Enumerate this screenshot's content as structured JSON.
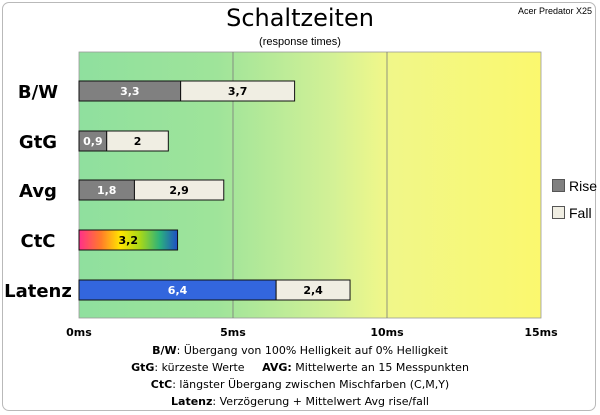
{
  "brand": "Acer Predator X25",
  "chart_data": {
    "type": "bar",
    "orientation": "horizontal",
    "stacked": true,
    "title": "Schaltzeiten",
    "subtitle": "(response times)",
    "categories": [
      "B/W",
      "GtG",
      "Avg",
      "CtC",
      "Latenz"
    ],
    "series": [
      {
        "name": "Rise",
        "values": [
          3.3,
          0.9,
          1.8,
          null,
          6.4
        ],
        "labels": [
          "3,3",
          "0,9",
          "1,8",
          "",
          "6,4"
        ]
      },
      {
        "name": "Fall",
        "values": [
          3.7,
          2.0,
          2.9,
          null,
          2.4
        ],
        "labels": [
          "3,7",
          "2",
          "2,9",
          "",
          "2,4"
        ]
      }
    ],
    "ctc": {
      "value": 3.2,
      "label": "3,2"
    },
    "xlim": [
      0,
      15
    ],
    "xticks": [
      {
        "value": 0,
        "label": "0ms"
      },
      {
        "value": 5,
        "label": "5ms"
      },
      {
        "value": 10,
        "label": "10ms"
      },
      {
        "value": 15,
        "label": "15ms"
      }
    ],
    "grid": true,
    "legend_position": "right",
    "colors": {
      "rise": "#808080",
      "fall": "#f0eee3",
      "latency_rise": "#3366dd",
      "bg_good": "#8fe09e",
      "bg_mid": "#e6f594",
      "bg_bad": "#f8f77a"
    }
  },
  "footnotes": [
    {
      "term": "B/W",
      "text": ":  Übergang von 100% Helligkeit auf 0% Helligkeit"
    },
    {
      "term": "GtG",
      "text": ": kürzeste  Werte",
      "term2": "AVG:",
      "text2": " Mittelwerte  an 15 Messpunkten"
    },
    {
      "term": "CtC",
      "text": ": längster Übergang  zwischen Mischfarben (C,M,Y)"
    },
    {
      "term": "Latenz",
      "text": ": Verzögerung  + Mittelwert Avg rise/fall"
    }
  ]
}
